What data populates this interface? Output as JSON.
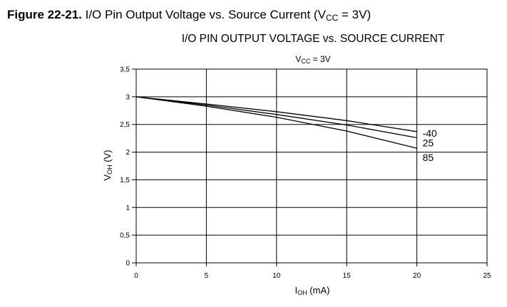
{
  "caption": {
    "figure_number": "Figure 22-21.",
    "text_before_sub": "I/O Pin Output Voltage vs. Source Current (V",
    "subscript": "CC",
    "text_after_sub": " = 3V)"
  },
  "chart_data": {
    "type": "line",
    "title": "I/O PIN OUTPUT VOLTAGE vs. SOURCE CURRENT",
    "subtitle": {
      "main": "V",
      "sub": "CC",
      "rest": " = 3V"
    },
    "xlabel": {
      "main": "I",
      "sub": "OH",
      "rest": " (mA)"
    },
    "ylabel": {
      "main": "V",
      "sub": "OH",
      "rest": " (V)"
    },
    "xlim": [
      0,
      25
    ],
    "ylim": [
      0,
      3.5
    ],
    "x_ticks": [
      "0",
      "5",
      "10",
      "15",
      "20",
      "25"
    ],
    "y_ticks": [
      "0",
      "0,5",
      "1",
      "1,5",
      "2",
      "2,5",
      "3",
      "3,5"
    ],
    "grid": true,
    "series": [
      {
        "name": "-40",
        "x": [
          0,
          5,
          10,
          15,
          20
        ],
        "y": [
          3.0,
          2.87,
          2.73,
          2.57,
          2.37
        ]
      },
      {
        "name": "25",
        "x": [
          0,
          5,
          10,
          15,
          20
        ],
        "y": [
          3.0,
          2.85,
          2.68,
          2.49,
          2.26
        ]
      },
      {
        "name": "85",
        "x": [
          0,
          5,
          10,
          15,
          20
        ],
        "y": [
          3.0,
          2.83,
          2.63,
          2.38,
          2.07
        ]
      }
    ]
  }
}
